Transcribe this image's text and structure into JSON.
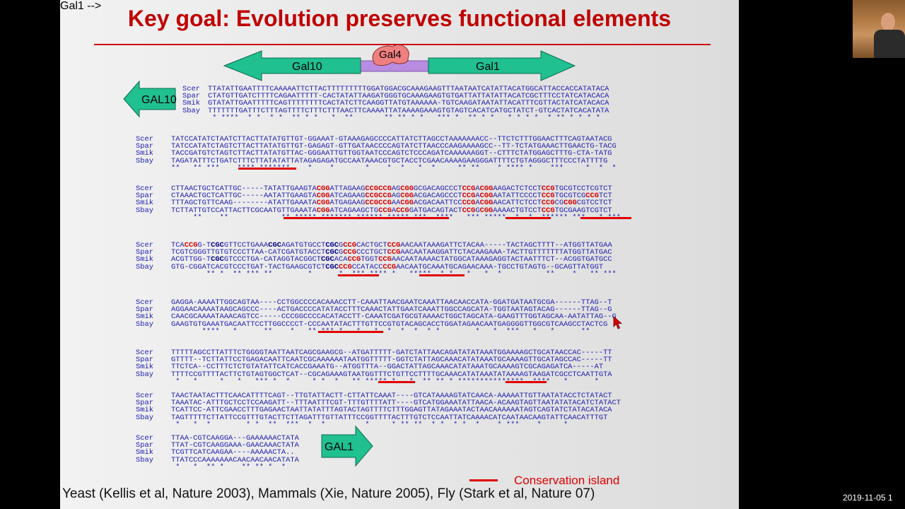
{
  "slide": {
    "title": "Key goal: Evolution preserves functional elements",
    "citation": "Yeast (Kellis et al, Nature 2003), Mammals (Xie, Nature 2005), Fly (Stark et al, Nature 07)",
    "legend_label": "Conservation island"
  },
  "gene_diagram": {
    "left_gene": "Gal10",
    "right_gene": "Gal1",
    "binding_protein": "Gal4"
  },
  "side_arrows": {
    "gal10": "GAL10",
    "gal1": "GAL1"
  },
  "colors": {
    "title": "#c00000",
    "gene_arrow": "#20c090",
    "promoter": "#b88ce0",
    "gal4": "#f08080",
    "sequence_text": "#1c1cb0",
    "highlight": "#d40000",
    "island": "#e00000"
  },
  "blocks": [
    {
      "rows": [
        {
          "name": "Scer",
          "seq": "TTATATTGAATTTTCAAAAATTCTTACTTTTTTTTTGGATGGACGCAAAGAAGTTTAATAATCATATTACATGGCATTACCACCATATACA"
        },
        {
          "name": "Spar",
          "seq": "CTATGTTGATCTTTTCAGAATTTTT-CACTATATTAAGATGGGTGCAAAGAAGTGTGATTATTATATTACATCGCTTTCCTATCATACACA"
        },
        {
          "name": "Smik",
          "seq": "GTATATTGAATTTTTCAGTTTTTTTTCACTATCTTCAAGGTTATGTAAAAAA-TGTCAAGATAATATTACATTTCGTTACTATCATACACA"
        },
        {
          "name": "Sbay",
          "seq": "TTTTTTTGATTTCTTTAGTTTTCTTTCTTTAACTTCAAAATTATAAAAGAAAGTGTAGTCACATCATGCTATCT-GTCACTATCACATATA"
        }
      ],
      "stars": " * ****  * *  * *  ** * *   *  **       ** ** * *   *** *  ** * *   * * * *  * ** * * * *"
    },
    {
      "rows": [
        {
          "name": "Scer",
          "seq": "TATCCATATCTAATCTTACTTATATGTTGT-GGAAAT-GTAAAGAGCCCCATTATCTTAGCCTAAAAAAACC--TTCTCTTTGGAACTTTCAGTAATACG"
        },
        {
          "name": "Spar",
          "seq": "TATCCATATCTAGTCTTACTTATATGTTGT-GAGAGT-GTTGATAACCCCAGTATCTTAACCCAAGAAAAGCC--TT-TCTATGAAACTTGAACTG-TACG"
        },
        {
          "name": "Smik",
          "seq": "TACCGATGTCTAGTCTTACTTATATGTTAC-GGGAATTGTTGGTAATCCCAGTCTCCCAGATCAAAAAAGGT--CTTTCTATGGAGCTTTG-CTA-TATG"
        },
        {
          "name": "Sbay",
          "seq": "TAGATATTTCTGATCTTTCTTATATATTATAGAGAGATGCCAATAAACGTGCTACCTCGAACAAAAGAAGGGATTTTCTGTAGGGCTTTCCCTATTTTG"
        }
      ],
      "stars": "**   ** ***    **** *******    *    *       *    *  *   *  *     ** **    * **** *    ***     *  *  *"
    },
    {
      "rows": [
        {
          "name": "Scer",
          "seq": "CTTAACTGCTCATTGC-----TATATTGAAGTACGGATTAGAAGCCGCCGAGCGGGCGACAGCCCTCCGACGGAAGACTCTCCTCCGTGCGTCCTCGTCT"
        },
        {
          "name": "Spar",
          "seq": "CTAAACTGCTCATTGC-----AATATTGAAGTACGGATCAGAAGCCGCCGAGCGGACGACAGCCCTCCGACGGAATATTCCCCTCCGTGCGTCGCCGTCT"
        },
        {
          "name": "Smik",
          "seq": "TTTAGCTGTTCAAG--------ATATTGAAATACGGATGAGAAGCCGCCGAACGGACGACAATTCCCCGACGGAACATTCTCCTCCGCGCGGCGTCCTCT"
        },
        {
          "name": "Sbay",
          "seq": "TCTTATTGTCCATTACTTCGCAATGTTGAAATACGGATCAGAAGCTGCCGACCGGATGACAGTACTCCGGCGGAAAACTGTCCTCCGTGCGAAGTCGTCT"
        }
      ],
      "stars": "     **    **            ** ***** ******* ****** ***** ***  ****   *** *****  *  *  ****** ***   * ***"
    },
    {
      "rows": [
        {
          "name": "Scer",
          "seq": "TCACCGG-TCGCGTTCCTGAAACGCAGATGTGCCTCGCGCCGCACTGCTCCGAACAATAAAGATTCTACAA-----TACTAGCTTTT--ATGGTTATGAA"
        },
        {
          "name": "Spar",
          "seq": "TCGTCGGGTTGTGTCCCTTAA-CATCGATGTACCTCGCGCCGCCCTGCTCCGAACAATAAGGATTCTACAAGAAA-TACTTGTTTTTTTATGGTTATGAC"
        },
        {
          "name": "Smik",
          "seq": "ACGTTGG-TCGCGTCCCTGA-CATAGGTACGGCTCGCACACCGTGGTCCGAACAATAAAACTATGGCATAAAGAGGTACTAATTTCT--ACGGTGATGCC"
        },
        {
          "name": "Sbay",
          "seq": "GTG-CGGATCACGTCCCTGAT-TACTGAAGCGTCTCGCCCGCCATACCCCGAACAATGCAAATGCAGAACAAA-TGCCTGTAGTG--GCAGTTATGGT"
        }
      ],
      "stars": "        ** *  ** *** **        *      *  *** **** *   *****  * *   *   *  *          **    *   ** ***"
    },
    {
      "rows": [
        {
          "name": "Scer",
          "seq": "GAGGA-AAAATTGGCAGTAA----CCTGGCCCCACAAACCTT-CAAATTAACGAATCAAATTAACAACCATA-GGATGATAATGCGA------TTAG--T"
        },
        {
          "name": "Spar",
          "seq": "AGGAACAAAATAAGCAGCCC----ACTGACCCCATATACCTTTCAAACTATTGAATCAAATTGGCCAGCATA-TGGTAATAGTACAG------TTAG--G"
        },
        {
          "name": "Smik",
          "seq": "CAACGCAAAATAAACAGTCC-----CCCGGCCCCACATACCTT-CAAATCGATGCGTAAAACTGGCTAGCATA-GAAGTTTGGTAGCAA-AATATTAG--G"
        },
        {
          "name": "Sbay",
          "seq": "GAAGTGTGAAATGACAATTCCTTGGCCCCT-CCCAATATACTTTGTTCCGTGTACAGCACCTGGATAGAACAATGAGGGGTTGGCGTCAAGCCTACTCG"
        }
      ],
      "stars": "       ****   *      **    *   ** *** *   *   *  *  *  *  * *        *   *  ***   *   *      **"
    },
    {
      "rows": [
        {
          "name": "Scer",
          "seq": "TTTTTAGCCTTATTTCTGGGGTAATTAATCAGCGAAGCG--ATGATTTTT-GATCTATTAACAGATATATAAATGGAAAAGCTGCATAACCAC-----TT"
        },
        {
          "name": "Spar",
          "seq": "GTTTT--TCTTATTCCTGAGACAATTCAATCGCAAAAAATAATGGTTTTT-GGTCTATTAGCAAACATATAAATGCAAAAGTTGCATAGCCAC-----TT"
        },
        {
          "name": "Smik",
          "seq": "TTCTCA--CCTTTCTCTGTATATTCATCACCGAAATG--ATGGTTTA--GGACTATTAGCAAACATATAAATGCAAAAGTCGCAGAGATCA-----AT"
        },
        {
          "name": "Sbay",
          "seq": "TTTTCCGTTTTACTTCTGTAGTGGCTCAT--CGCAGAAAGTAATGGTTTCTGTTCCTTTTGCAAACATATAAATATAAAAGTAAGATCGCCTCAATTGTA"
        }
      ],
      "stars": " *   *     *   *   *** *  *     * *  *   ** ***** *   *  ** ** * ***************  ****   *      *"
    },
    {
      "rows": [
        {
          "name": "Scer",
          "seq": "TAACTAATACTTTCAACATTTTCAGT--TTGTATTACTT-CTTATTCAAAT----GTCATAAAAGTATCAACA-AAAAATTGTTAATATACCTCTATACT"
        },
        {
          "name": "Spar",
          "seq": "TAAATAC-ATTTGCTCCTCCAAGATT--TTTAATTTCGT-TTTGTTTTATT----GTCATGGAAATATTAACA-ACAAGTAGTTAATATATACATCTATACT"
        },
        {
          "name": "Smik",
          "seq": "TCATTCC-ATTCGAACCTTTGAGAACTAATTATATTTAGTACTAGTTTTCTTTGGAGTTATAGAAATACTAACAAAAAATAGTCAGTATCTATACATACA"
        },
        {
          "name": "Sbay",
          "seq": "TAGTTTTTCTTATTCCGTTTGTACTTCTTAGATTTGTTATTTCCGGTTTTACTTTGTCTCCAATTATCAAAACATCAATAACAAGTATTCAACATTTGT"
        }
      ],
      "stars": " *   *  *        * *  **  ***  *  *         *     * ** **  * *  * *  *    * ***    *     *"
    },
    {
      "rows": [
        {
          "name": "Scer",
          "seq": "TTAA-CGTCAAGGA---GAAAAAACTATA"
        },
        {
          "name": "Spar",
          "seq": "TTAT-CGTCAAGGAAA-GAACAAACTATA"
        },
        {
          "name": "Smik",
          "seq": "TCGTTCATCAAGAA----AAAAACTA.."
        },
        {
          "name": "Sbay",
          "seq": "TTATCCCAAAAAAACAACAACAACATATA"
        }
      ],
      "stars": " *   *  ** *    ** ** *  *"
    }
  ]
}
